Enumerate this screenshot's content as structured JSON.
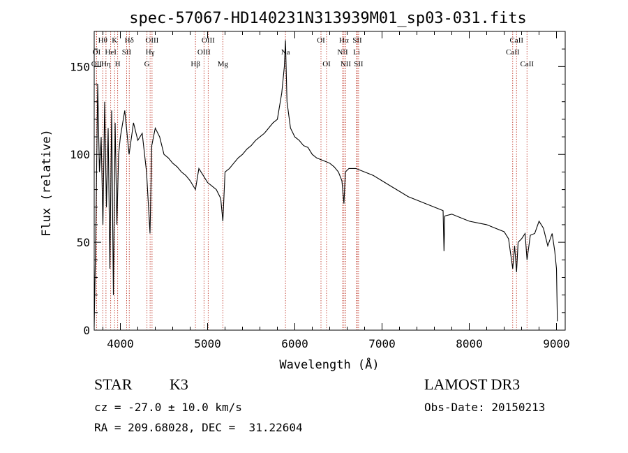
{
  "chart_data": {
    "type": "line",
    "title": "spec-57067-HD140231N313939M01_sp03-031.fits",
    "xlabel": "Wavelength (Å)",
    "ylabel": "Flux (relative)",
    "xlim": [
      3700,
      9100
    ],
    "ylim": [
      0,
      170
    ],
    "xticks": [
      4000,
      5000,
      6000,
      7000,
      8000,
      9000
    ],
    "yticks": [
      0,
      50,
      100,
      150
    ],
    "grid": false,
    "series": [
      {
        "name": "flux",
        "x": [
          3700,
          3720,
          3740,
          3760,
          3780,
          3800,
          3820,
          3840,
          3860,
          3880,
          3900,
          3920,
          3940,
          3960,
          3980,
          4000,
          4050,
          4100,
          4150,
          4200,
          4250,
          4300,
          4340,
          4360,
          4400,
          4450,
          4500,
          4550,
          4600,
          4650,
          4700,
          4750,
          4800,
          4861,
          4900,
          4950,
          5000,
          5050,
          5100,
          5150,
          5175,
          5200,
          5250,
          5300,
          5350,
          5400,
          5450,
          5500,
          5550,
          5600,
          5650,
          5700,
          5750,
          5800,
          5850,
          5880,
          5893,
          5910,
          5950,
          6000,
          6050,
          6100,
          6150,
          6200,
          6250,
          6300,
          6350,
          6400,
          6450,
          6500,
          6540,
          6563,
          6580,
          6620,
          6700,
          6800,
          6900,
          7000,
          7100,
          7200,
          7300,
          7400,
          7500,
          7600,
          7700,
          7710,
          7720,
          7800,
          7900,
          8000,
          8100,
          8200,
          8300,
          8400,
          8450,
          8498,
          8520,
          8542,
          8560,
          8600,
          8640,
          8662,
          8700,
          8750,
          8800,
          8850,
          8900,
          8950,
          8980,
          9000,
          9010
        ],
        "values": [
          2,
          60,
          140,
          90,
          110,
          60,
          130,
          70,
          115,
          35,
          125,
          20,
          118,
          60,
          100,
          110,
          125,
          100,
          118,
          108,
          112,
          90,
          55,
          105,
          115,
          110,
          100,
          98,
          95,
          93,
          90,
          88,
          85,
          80,
          92,
          88,
          84,
          82,
          80,
          75,
          62,
          90,
          92,
          95,
          98,
          100,
          103,
          105,
          108,
          110,
          112,
          115,
          118,
          120,
          135,
          150,
          165,
          130,
          115,
          110,
          108,
          105,
          104,
          100,
          98,
          97,
          96,
          95,
          93,
          90,
          85,
          72,
          90,
          92,
          92,
          90,
          88,
          85,
          82,
          79,
          76,
          74,
          72,
          70,
          68,
          45,
          65,
          66,
          64,
          62,
          61,
          60,
          58,
          56,
          52,
          35,
          48,
          33,
          50,
          52,
          55,
          40,
          54,
          55,
          62,
          58,
          48,
          55,
          45,
          35,
          5
        ]
      }
    ],
    "line_markers": [
      {
        "label": "OII",
        "x": 3727,
        "row": 3
      },
      {
        "label": "OI",
        "x": 3727,
        "row": 2
      },
      {
        "label": "Hθ",
        "x": 3798,
        "row": 1
      },
      {
        "label": "Hη",
        "x": 3835,
        "row": 3
      },
      {
        "label": "HeI",
        "x": 3889,
        "row": 2
      },
      {
        "label": "K",
        "x": 3934,
        "row": 1
      },
      {
        "label": "H",
        "x": 3969,
        "row": 3
      },
      {
        "label": "SII",
        "x": 4072,
        "row": 2
      },
      {
        "label": "Hδ",
        "x": 4102,
        "row": 1
      },
      {
        "label": "G",
        "x": 4305,
        "row": 3
      },
      {
        "label": "OIII",
        "x": 4363,
        "row": 1
      },
      {
        "label": "Hγ",
        "x": 4341,
        "row": 2
      },
      {
        "label": "Hβ",
        "x": 4861,
        "row": 3
      },
      {
        "label": "OIII",
        "x": 4959,
        "row": 2
      },
      {
        "label": "OIII",
        "x": 5007,
        "row": 1
      },
      {
        "label": "Mg",
        "x": 5175,
        "row": 3
      },
      {
        "label": "Na",
        "x": 5893,
        "row": 2
      },
      {
        "label": "OI",
        "x": 6300,
        "row": 1
      },
      {
        "label": "OI",
        "x": 6364,
        "row": 3
      },
      {
        "label": "NII",
        "x": 6548,
        "row": 2
      },
      {
        "label": "Hα",
        "x": 6563,
        "row": 1
      },
      {
        "label": "NII",
        "x": 6583,
        "row": 3
      },
      {
        "label": "Li",
        "x": 6708,
        "row": 2
      },
      {
        "label": "SII",
        "x": 6716,
        "row": 1
      },
      {
        "label": "SII",
        "x": 6731,
        "row": 3
      },
      {
        "label": "CaII",
        "x": 8498,
        "row": 2
      },
      {
        "label": "CaII",
        "x": 8542,
        "row": 1
      },
      {
        "label": "CaII",
        "x": 8662,
        "row": 3
      }
    ],
    "colors": {
      "line": "#000000",
      "marker": "#c0392b",
      "axis": "#000000"
    }
  },
  "footer": {
    "class": "STAR",
    "subclass": "K3",
    "cz": "cz = -27.0 ± 10.0 km/s",
    "radec": "RA = 209.68028, DEC =  31.22604",
    "survey": "LAMOST DR3",
    "obsdate": "Obs-Date: 20150213"
  }
}
